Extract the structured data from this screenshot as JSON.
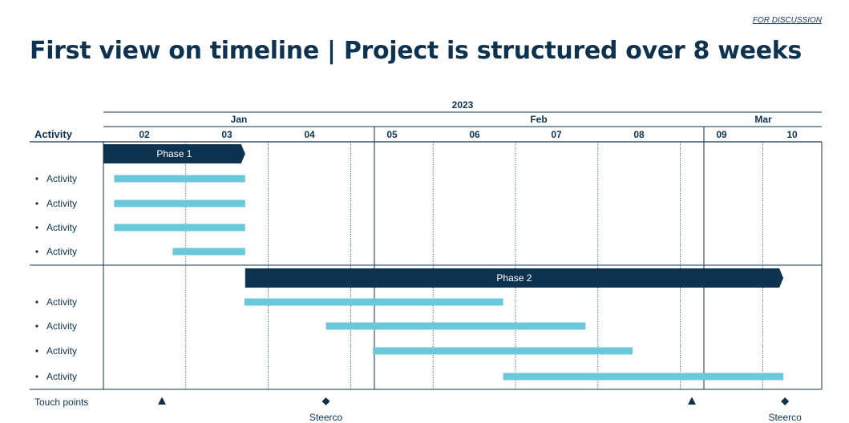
{
  "header": {
    "tag": "FOR DISCUSSION",
    "title": "First view on timeline | Project is structured over 8 weeks"
  },
  "timeline": {
    "year": "2023",
    "months": [
      "Jan",
      "Feb",
      "Mar"
    ],
    "weeks": [
      "02",
      "03",
      "04",
      "05",
      "06",
      "07",
      "08",
      "09",
      "10"
    ],
    "activity_header": "Activity",
    "touch_points_label": "Touch points"
  },
  "phases": [
    {
      "name": "Phase 1",
      "start": 0.0,
      "end": 1.72,
      "activities": [
        {
          "label": "Activity",
          "start": 0.13,
          "end": 1.72
        },
        {
          "label": "Activity",
          "start": 0.13,
          "end": 1.72
        },
        {
          "label": "Activity",
          "start": 0.13,
          "end": 1.72
        },
        {
          "label": "Activity",
          "start": 0.84,
          "end": 1.72
        }
      ]
    },
    {
      "name": "Phase 2",
      "start": 1.72,
      "end": 8.25,
      "activities": [
        {
          "label": "Activity",
          "start": 1.71,
          "end": 4.85
        },
        {
          "label": "Activity",
          "start": 2.7,
          "end": 5.85
        },
        {
          "label": "Activity",
          "start": 3.27,
          "end": 6.42
        },
        {
          "label": "Activity",
          "start": 4.85,
          "end": 8.25
        }
      ]
    }
  ],
  "touch_points": [
    {
      "type": "triangle",
      "week": 0.71,
      "label": ""
    },
    {
      "type": "diamond",
      "week": 2.7,
      "label": "Steerco"
    },
    {
      "type": "triangle",
      "week": 7.14,
      "label": ""
    },
    {
      "type": "diamond",
      "week": 8.27,
      "label": "Steerco"
    }
  ],
  "colors": {
    "navy": "#0d3351",
    "teal": "#6ac8da",
    "white": "#ffffff"
  }
}
